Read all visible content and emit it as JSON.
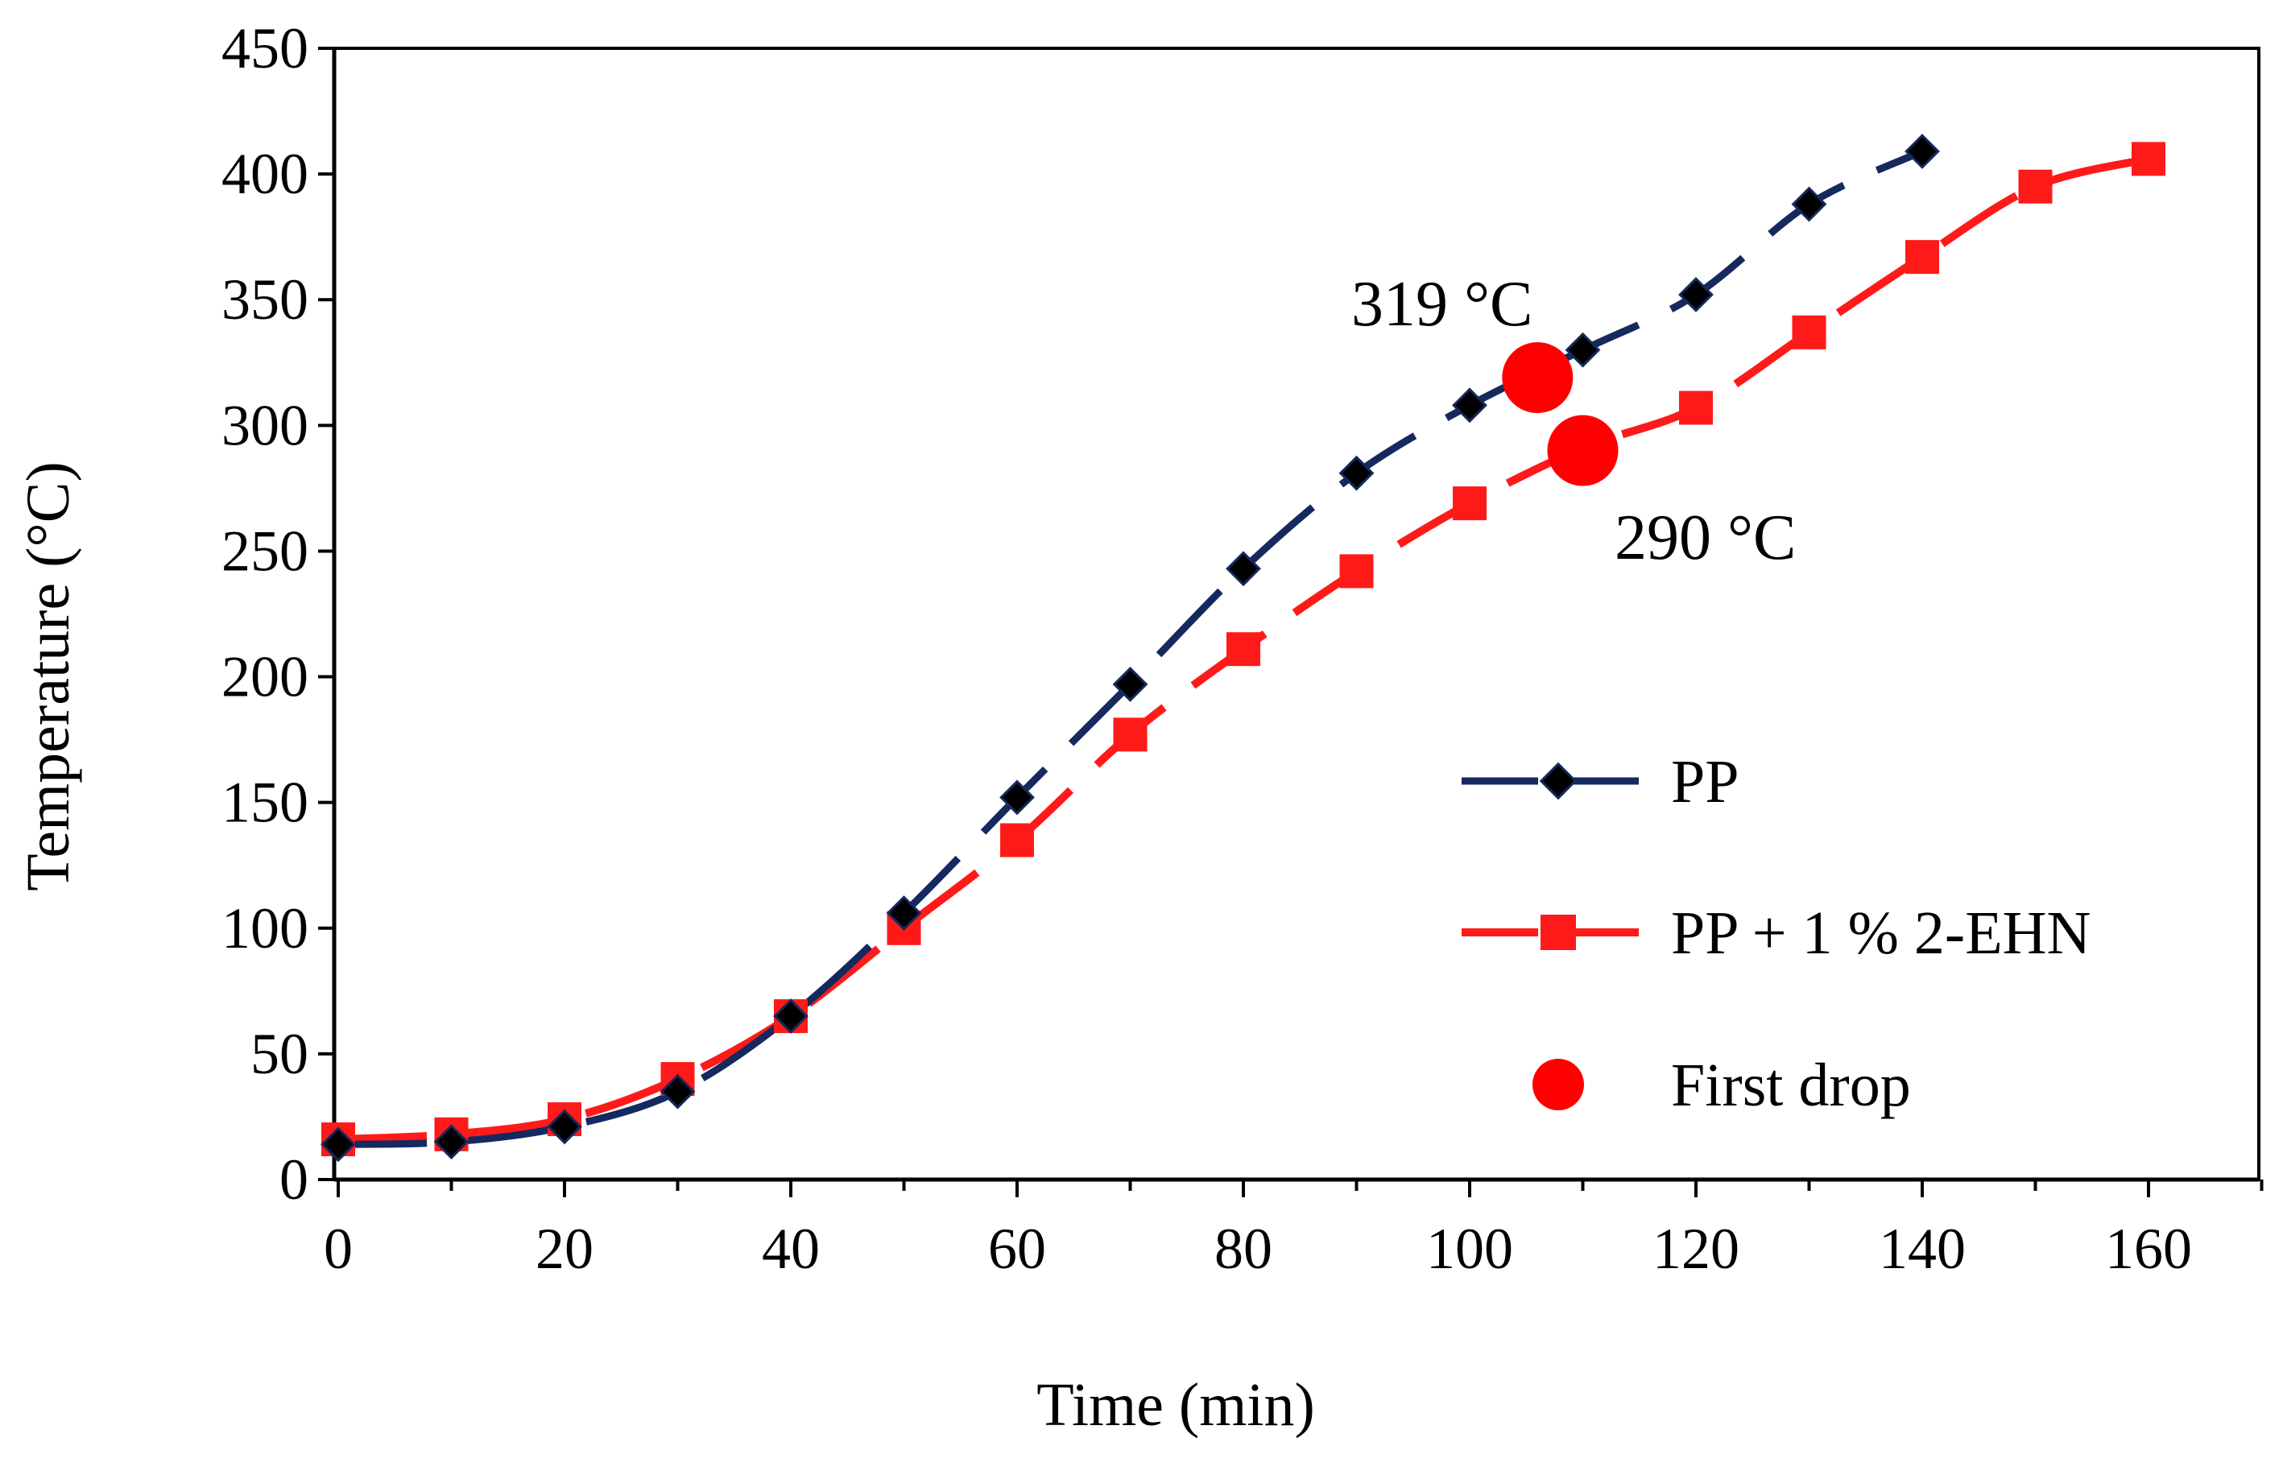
{
  "chart_data": {
    "type": "line",
    "title": "",
    "xlabel": "Time (min)",
    "ylabel": "Temperature (°C)",
    "xlim": [
      0,
      170
    ],
    "ylim": [
      0,
      450
    ],
    "xticks": [
      0,
      20,
      40,
      60,
      80,
      100,
      120,
      140,
      160
    ],
    "yticks": [
      0,
      50,
      100,
      150,
      200,
      250,
      300,
      350,
      400,
      450
    ],
    "grid": false,
    "legend_position": "right",
    "series": [
      {
        "name": "PP",
        "color": "#15295e",
        "line_style": "dashed",
        "marker": "diamond",
        "marker_color": "#000000",
        "x": [
          0,
          10,
          20,
          30,
          40,
          50,
          60,
          70,
          80,
          90,
          100,
          110,
          120,
          130,
          140
        ],
        "values": [
          14,
          15,
          21,
          35,
          65,
          106,
          152,
          197,
          243,
          281,
          308,
          330,
          352,
          388,
          409
        ]
      },
      {
        "name": "PP + 1 % 2-EHN",
        "color": "#ff1a1a",
        "line_style": "dashed",
        "marker": "square",
        "marker_color": "#ff1a1a",
        "x": [
          0,
          10,
          20,
          30,
          40,
          50,
          60,
          70,
          80,
          90,
          100,
          110,
          120,
          130,
          140,
          150,
          160
        ],
        "values": [
          16,
          18,
          24,
          40,
          65,
          100,
          135,
          177,
          211,
          242,
          269,
          291,
          307,
          337,
          367,
          395,
          406
        ]
      }
    ],
    "first_drop": {
      "name": "First drop",
      "color": "#ff0000",
      "points": [
        {
          "x": 106,
          "y": 319,
          "label": "319 °C"
        },
        {
          "x": 110,
          "y": 290,
          "label": "290 °C"
        }
      ]
    }
  }
}
